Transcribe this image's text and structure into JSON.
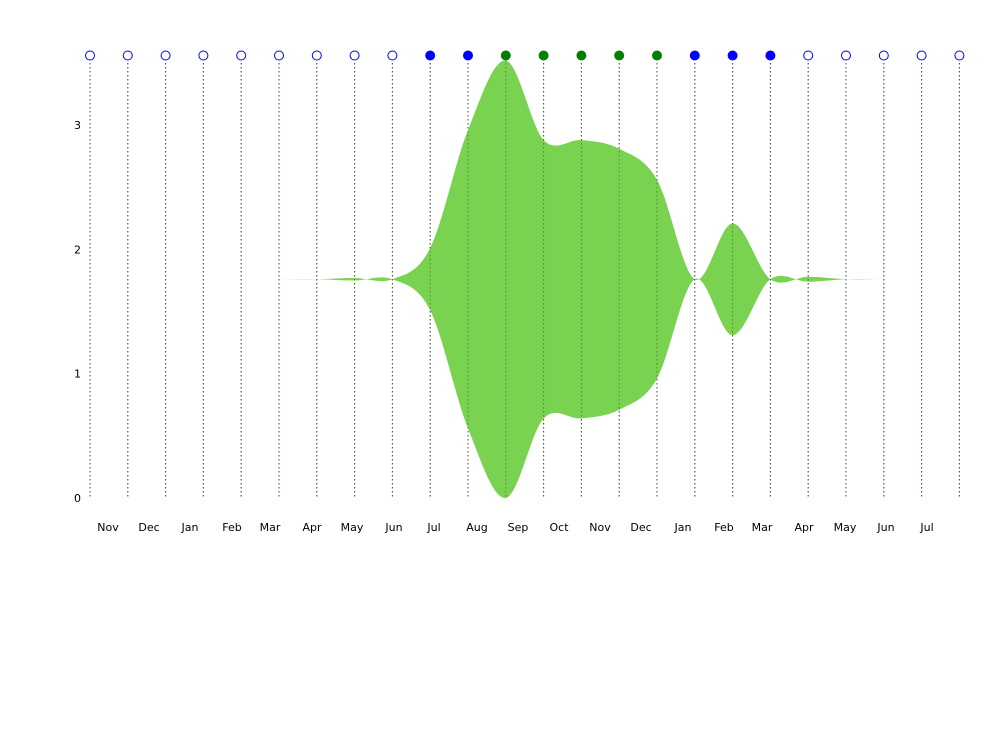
{
  "chart_data": {
    "type": "area",
    "title": "",
    "xlabel": "",
    "ylabel": "",
    "ylim": [
      0,
      3.5
    ],
    "yticks": [
      0,
      1,
      2,
      3
    ],
    "grid": "vertical-dotted",
    "xtick_labels": [
      "Nov",
      "Dec",
      "Jan",
      "Feb",
      "Mar",
      "Apr",
      "May",
      "Jun",
      "Jul",
      "Aug",
      "Sep",
      "Oct",
      "Nov",
      "Dec",
      "Jan",
      "Feb",
      "Mar",
      "Apr",
      "May",
      "Jun",
      "Jul"
    ],
    "marker_states": [
      "empty",
      "empty",
      "empty",
      "empty",
      "empty",
      "empty",
      "empty",
      "empty",
      "empty",
      "blue",
      "blue",
      "green",
      "green",
      "green",
      "green",
      "green",
      "blue",
      "blue",
      "blue",
      "empty",
      "empty",
      "empty",
      "empty",
      "empty"
    ],
    "series": [
      {
        "center": 1.76,
        "half_width": [
          0,
          0,
          0,
          0,
          0,
          0,
          0,
          0.01,
          0,
          0.25,
          1.2,
          1.76,
          1.12,
          1.12,
          1.05,
          0.8,
          0,
          0.45,
          0,
          0.02,
          0,
          0,
          0,
          0
        ]
      }
    ],
    "colors": {
      "fill": "#79d250",
      "marker_blue": "#0000ff",
      "marker_green": "#008000",
      "grid": "#555555"
    }
  }
}
